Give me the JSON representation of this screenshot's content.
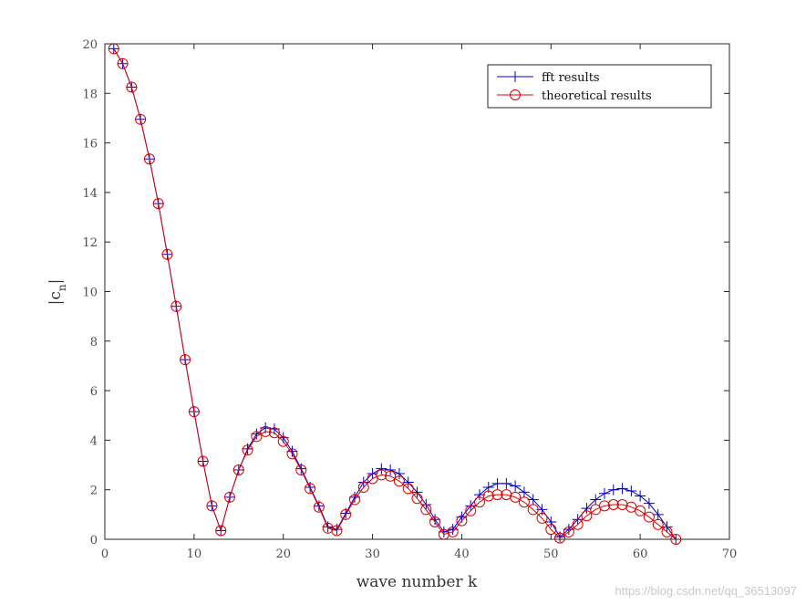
{
  "chart_data": {
    "type": "line",
    "xlabel": "wave number k",
    "ylabel_main": "|c",
    "ylabel_sub": "n",
    "ylabel_end": "|",
    "xlim": [
      0,
      70
    ],
    "ylim": [
      0,
      20
    ],
    "xticks": [
      0,
      10,
      20,
      30,
      40,
      50,
      60,
      70
    ],
    "yticks": [
      0,
      2,
      4,
      6,
      8,
      10,
      12,
      14,
      16,
      18,
      20
    ],
    "grid": false,
    "legend_position": "top-right",
    "x": [
      1,
      2,
      3,
      4,
      5,
      6,
      7,
      8,
      9,
      10,
      11,
      12,
      13,
      14,
      15,
      16,
      17,
      18,
      19,
      20,
      21,
      22,
      23,
      24,
      25,
      26,
      27,
      28,
      29,
      30,
      31,
      32,
      33,
      34,
      35,
      36,
      37,
      38,
      39,
      40,
      41,
      42,
      43,
      44,
      45,
      46,
      47,
      48,
      49,
      50,
      51,
      52,
      53,
      54,
      55,
      56,
      57,
      58,
      59,
      60,
      61,
      62,
      63,
      64
    ],
    "series": [
      {
        "name": "fft results",
        "color": "#0000cc",
        "marker": "plus",
        "values": [
          19.8,
          19.2,
          18.25,
          16.95,
          15.35,
          13.55,
          11.5,
          9.4,
          7.25,
          5.15,
          3.15,
          1.35,
          0.35,
          1.7,
          2.8,
          3.65,
          4.25,
          4.5,
          4.45,
          4.1,
          3.55,
          2.85,
          2.1,
          1.35,
          0.5,
          0.4,
          1.05,
          1.7,
          2.3,
          2.65,
          2.85,
          2.8,
          2.65,
          2.3,
          1.9,
          1.4,
          0.8,
          0.3,
          0.4,
          0.9,
          1.35,
          1.8,
          2.1,
          2.25,
          2.25,
          2.15,
          1.9,
          1.6,
          1.2,
          0.7,
          0.1,
          0.4,
          0.8,
          1.25,
          1.6,
          1.85,
          2.0,
          2.05,
          1.95,
          1.75,
          1.45,
          1.0,
          0.5,
          0.0
        ]
      },
      {
        "name": "theoretical results",
        "color": "#dd0000",
        "marker": "circle",
        "values": [
          19.8,
          19.2,
          18.25,
          16.95,
          15.35,
          13.55,
          11.5,
          9.4,
          7.25,
          5.15,
          3.15,
          1.35,
          0.35,
          1.7,
          2.8,
          3.6,
          4.15,
          4.35,
          4.3,
          3.95,
          3.45,
          2.8,
          2.05,
          1.3,
          0.45,
          0.35,
          1.0,
          1.6,
          2.1,
          2.45,
          2.6,
          2.55,
          2.35,
          2.05,
          1.65,
          1.2,
          0.7,
          0.2,
          0.3,
          0.75,
          1.15,
          1.5,
          1.75,
          1.8,
          1.8,
          1.7,
          1.5,
          1.2,
          0.85,
          0.4,
          0.05,
          0.3,
          0.6,
          0.95,
          1.2,
          1.35,
          1.4,
          1.4,
          1.3,
          1.15,
          0.9,
          0.6,
          0.3,
          0.0
        ]
      }
    ]
  },
  "watermark": "https://blog.csdn.net/qq_36513097"
}
